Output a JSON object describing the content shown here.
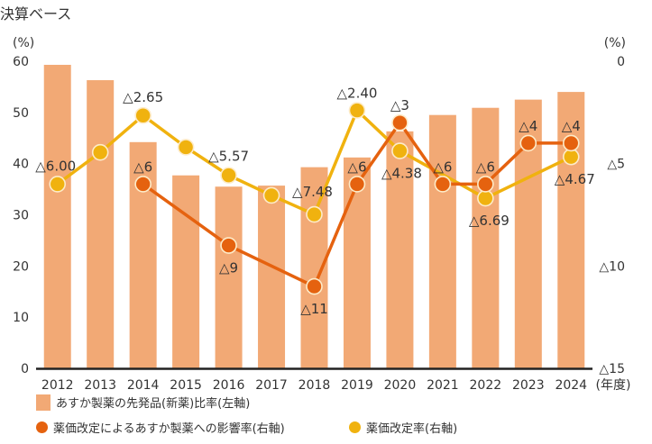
{
  "title": "決算ベース",
  "chart_data": {
    "type": "bar+line",
    "categories": [
      "2012",
      "2013",
      "2014",
      "2015",
      "2016",
      "2017",
      "2018",
      "2019",
      "2020",
      "2021",
      "2022",
      "2023",
      "2024"
    ],
    "x_unit_label": "(年度)",
    "left_axis": {
      "unit": "(%)",
      "range": [
        0,
        60
      ],
      "ticks": [
        "0",
        "10",
        "20",
        "30",
        "40",
        "50",
        "60"
      ]
    },
    "right_axis": {
      "unit": "(%)",
      "range": [
        0,
        15
      ],
      "inverted": true,
      "ticks": [
        "0",
        "△5",
        "△10",
        "△15"
      ]
    },
    "series": [
      {
        "name": "あすか製薬の先発品(新薬)比率(左軸)",
        "kind": "bar",
        "axis": "left",
        "color": "#f2a975",
        "values": [
          59.3,
          56.3,
          44.2,
          37.7,
          35.5,
          35.7,
          39.3,
          41.2,
          46.3,
          49.5,
          50.9,
          52.5,
          54.0
        ]
      },
      {
        "name": "薬価改定によるあすか製薬への影響率(右軸)",
        "kind": "line",
        "axis": "right",
        "color": "#e5620f",
        "values": [
          null,
          null,
          6,
          null,
          9,
          null,
          11,
          6,
          3,
          6,
          6,
          4,
          4
        ],
        "labels": [
          null,
          null,
          "△6",
          null,
          "△9",
          null,
          "△11",
          "△6",
          "△3",
          "△6",
          "△6",
          "△4",
          "△4"
        ]
      },
      {
        "name": "薬価改定率(右軸)",
        "kind": "line",
        "axis": "right",
        "color": "#f0b20f",
        "values": [
          6.0,
          4.45,
          2.65,
          4.2,
          5.57,
          6.55,
          7.48,
          2.4,
          4.38,
          null,
          6.69,
          null,
          4.67
        ],
        "labels": [
          "△6.00",
          null,
          "△2.65",
          null,
          "△5.57",
          null,
          "△7.48",
          "△2.40",
          "△4.38",
          null,
          "△6.69",
          null,
          "△4.67"
        ]
      }
    ]
  }
}
